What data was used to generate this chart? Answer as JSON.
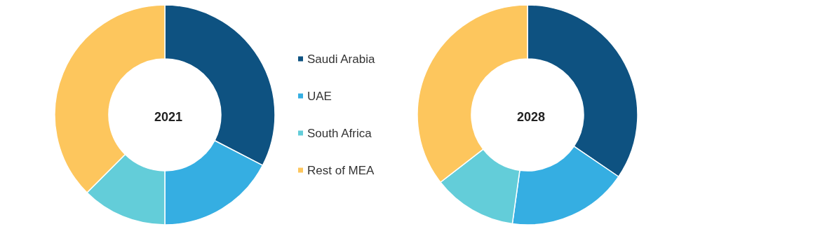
{
  "chart_data": {
    "type": "donut",
    "categories": [
      "Saudi Arabia",
      "UAE",
      "South Africa",
      "Rest of MEA"
    ],
    "colors": [
      "#0e5281",
      "#35aee2",
      "#63cdd9",
      "#fdc65d"
    ],
    "legend": "right",
    "series": [
      {
        "name": "2021",
        "values": [
          32.6,
          17.4,
          12.5,
          37.5
        ]
      },
      {
        "name": "2028",
        "values": [
          34.5,
          17.7,
          12.3,
          35.5
        ]
      }
    ]
  }
}
